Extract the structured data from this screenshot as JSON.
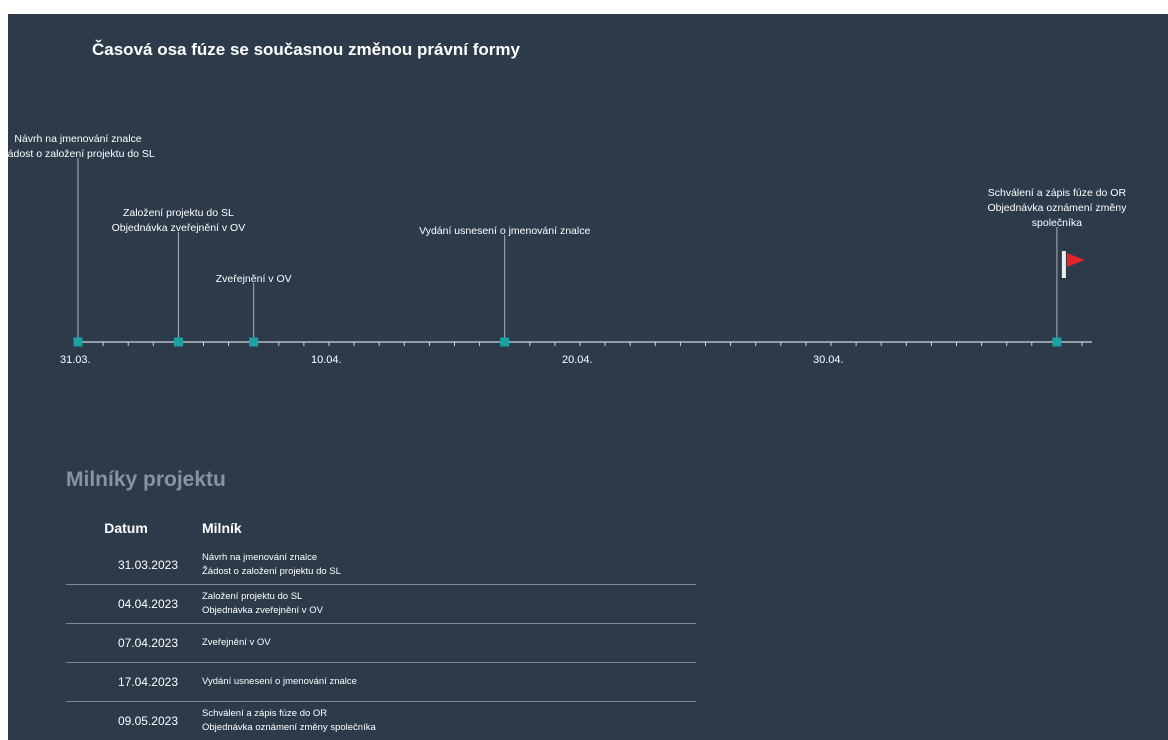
{
  "title": "Časová osa fúze se současnou změnou právní formy",
  "colors": {
    "background": "#2c3a4a",
    "marker": "#1aa3a3",
    "axis": "#d0d6dc",
    "flag": "#e3242b"
  },
  "timeline": {
    "axis_start": "31.03.",
    "tick_labels": [
      "31.03.",
      "10.04.",
      "20.04.",
      "30.04."
    ],
    "milestones": [
      {
        "date": "31.03.2023",
        "lines": [
          "Návrh na jmenování znalce",
          "Žádost o založení projektu do SL"
        ]
      },
      {
        "date": "04.04.2023",
        "lines": [
          "Založení projektu do SL",
          "Objednávka zveřejnění v OV"
        ]
      },
      {
        "date": "07.04.2023",
        "lines": [
          "Zveřejnění v OV"
        ]
      },
      {
        "date": "17.04.2023",
        "lines": [
          "Vydání usnesení o jmenování znalce"
        ]
      },
      {
        "date": "09.05.2023",
        "lines": [
          "Schválení a zápis fúze do OR",
          "Objednávka oznámení změny",
          "společníka"
        ],
        "flag": true
      }
    ]
  },
  "milestones_section": {
    "title": "Milníky projektu",
    "columns": [
      "Datum",
      "Milník"
    ],
    "rows": [
      {
        "date": "31.03.2023",
        "lines": [
          "Návrh na jmenování znalce",
          "Žádost o založení projektu do SL"
        ]
      },
      {
        "date": "04.04.2023",
        "lines": [
          "Založení projektu do SL",
          "Objednávka zveřejnění v OV"
        ]
      },
      {
        "date": "07.04.2023",
        "lines": [
          "Zveřejnění v OV"
        ]
      },
      {
        "date": "17.04.2023",
        "lines": [
          "Vydání usnesení o jmenování znalce"
        ]
      },
      {
        "date": "09.05.2023",
        "lines": [
          "Schválení a zápis fúze do OR",
          "Objednávka oznámení změny společníka"
        ]
      }
    ]
  }
}
